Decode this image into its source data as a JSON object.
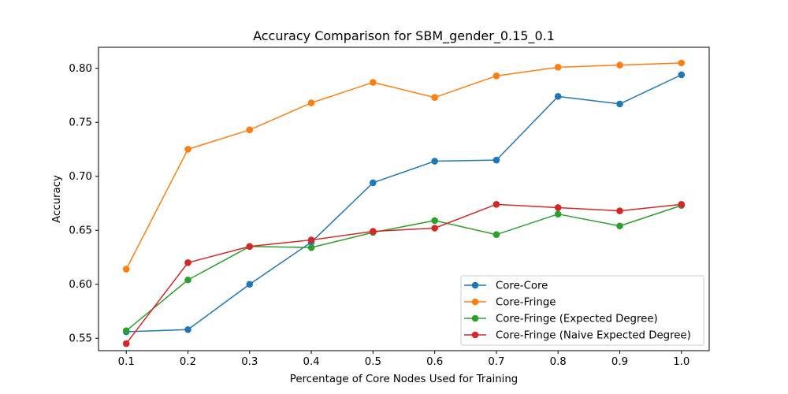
{
  "chart_data": {
    "type": "line",
    "title": "Accuracy Comparison for SBM_gender_0.15_0.1",
    "xlabel": "Percentage of Core Nodes Used for Training",
    "ylabel": "Accuracy",
    "x": [
      0.1,
      0.2,
      0.3,
      0.4,
      0.5,
      0.6,
      0.7,
      0.8,
      0.9,
      1.0
    ],
    "x_ticks": [
      "0.1",
      "0.2",
      "0.3",
      "0.4",
      "0.5",
      "0.6",
      "0.7",
      "0.8",
      "0.9",
      "1.0"
    ],
    "y_ticks": [
      "0.55",
      "0.60",
      "0.65",
      "0.70",
      "0.75",
      "0.80"
    ],
    "y_tick_values": [
      0.55,
      0.6,
      0.65,
      0.7,
      0.75,
      0.8
    ],
    "xlim": [
      0.055,
      1.045
    ],
    "ylim": [
      0.5385,
      0.8195
    ],
    "grid": false,
    "legend_position": "lower-right",
    "series": [
      {
        "name": "Core-Core",
        "color": "#1f77b4",
        "values": [
          0.556,
          0.558,
          0.6,
          0.639,
          0.694,
          0.714,
          0.715,
          0.774,
          0.767,
          0.794
        ]
      },
      {
        "name": "Core-Fringe",
        "color": "#ff7f0e",
        "values": [
          0.614,
          0.725,
          0.743,
          0.768,
          0.787,
          0.773,
          0.793,
          0.801,
          0.803,
          0.805
        ]
      },
      {
        "name": "Core-Fringe (Expected Degree)",
        "color": "#2ca02c",
        "values": [
          0.557,
          0.604,
          0.635,
          0.634,
          0.648,
          0.659,
          0.646,
          0.665,
          0.654,
          0.673
        ]
      },
      {
        "name": "Core-Fringe (Naive Expected Degree)",
        "color": "#d62728",
        "values": [
          0.545,
          0.62,
          0.635,
          0.641,
          0.649,
          0.652,
          0.674,
          0.671,
          0.668,
          0.674
        ]
      }
    ]
  }
}
